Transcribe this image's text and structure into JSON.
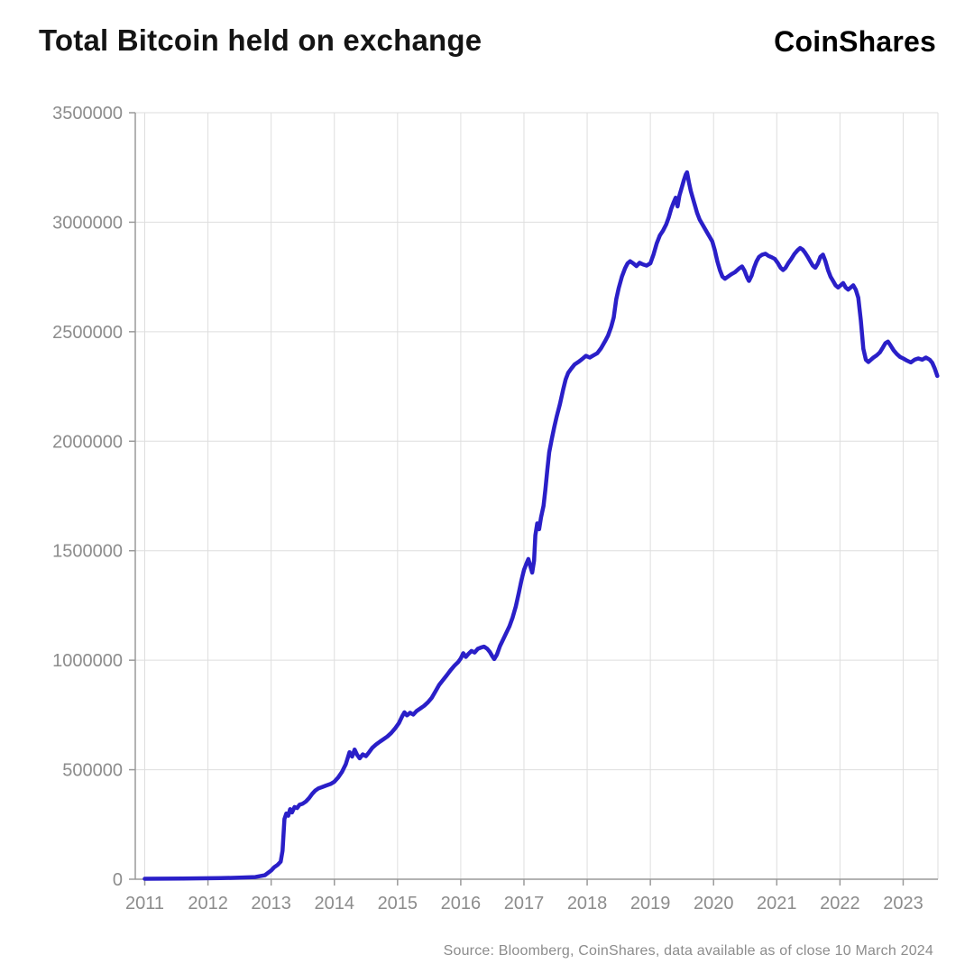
{
  "header": {
    "title": "Total Bitcoin held on exchange",
    "brand": "CoinShares"
  },
  "footer": {
    "source": "Source: Bloomberg, CoinShares, data available as of close 10 March 2024"
  },
  "chart_data": {
    "type": "line",
    "title": "Total Bitcoin held on exchange",
    "xlabel": "",
    "ylabel": "",
    "xlim": [
      2010.85,
      2023.55
    ],
    "ylim": [
      0,
      3500000
    ],
    "x_ticks": [
      2011,
      2012,
      2013,
      2014,
      2015,
      2016,
      2017,
      2018,
      2019,
      2020,
      2021,
      2022,
      2023
    ],
    "y_ticks": [
      0,
      500000,
      1000000,
      1500000,
      2000000,
      2500000,
      3000000,
      3500000
    ],
    "grid": true,
    "legend": "none",
    "colors": {
      "line": "#2a1fc8",
      "grid": "#dedede",
      "axis": "#9a9a9a",
      "tick_label": "#8c8c8c",
      "title": "#141414"
    },
    "series": [
      {
        "name": "Total Bitcoin held on exchange",
        "points": [
          [
            2011.0,
            2000
          ],
          [
            2011.3,
            2500
          ],
          [
            2011.6,
            3000
          ],
          [
            2011.9,
            4000
          ],
          [
            2012.2,
            5000
          ],
          [
            2012.5,
            7000
          ],
          [
            2012.75,
            10000
          ],
          [
            2012.9,
            18000
          ],
          [
            2013.0,
            40000
          ],
          [
            2013.05,
            55000
          ],
          [
            2013.1,
            65000
          ],
          [
            2013.15,
            80000
          ],
          [
            2013.18,
            130000
          ],
          [
            2013.21,
            275000
          ],
          [
            2013.24,
            300000
          ],
          [
            2013.27,
            290000
          ],
          [
            2013.3,
            320000
          ],
          [
            2013.33,
            305000
          ],
          [
            2013.37,
            330000
          ],
          [
            2013.41,
            325000
          ],
          [
            2013.45,
            340000
          ],
          [
            2013.5,
            345000
          ],
          [
            2013.55,
            355000
          ],
          [
            2013.6,
            370000
          ],
          [
            2013.65,
            390000
          ],
          [
            2013.7,
            405000
          ],
          [
            2013.75,
            415000
          ],
          [
            2013.8,
            420000
          ],
          [
            2013.87,
            428000
          ],
          [
            2013.94,
            435000
          ],
          [
            2014.0,
            445000
          ],
          [
            2014.06,
            465000
          ],
          [
            2014.12,
            490000
          ],
          [
            2014.18,
            525000
          ],
          [
            2014.24,
            580000
          ],
          [
            2014.28,
            560000
          ],
          [
            2014.32,
            592000
          ],
          [
            2014.36,
            568000
          ],
          [
            2014.4,
            552000
          ],
          [
            2014.45,
            570000
          ],
          [
            2014.5,
            562000
          ],
          [
            2014.55,
            580000
          ],
          [
            2014.6,
            600000
          ],
          [
            2014.66,
            615000
          ],
          [
            2014.72,
            628000
          ],
          [
            2014.78,
            640000
          ],
          [
            2014.84,
            652000
          ],
          [
            2014.9,
            668000
          ],
          [
            2014.96,
            688000
          ],
          [
            2015.02,
            712000
          ],
          [
            2015.07,
            742000
          ],
          [
            2015.11,
            762000
          ],
          [
            2015.15,
            748000
          ],
          [
            2015.2,
            760000
          ],
          [
            2015.25,
            752000
          ],
          [
            2015.3,
            768000
          ],
          [
            2015.36,
            780000
          ],
          [
            2015.42,
            792000
          ],
          [
            2015.48,
            808000
          ],
          [
            2015.54,
            828000
          ],
          [
            2015.6,
            858000
          ],
          [
            2015.66,
            888000
          ],
          [
            2015.72,
            910000
          ],
          [
            2015.78,
            932000
          ],
          [
            2015.84,
            955000
          ],
          [
            2015.9,
            975000
          ],
          [
            2015.96,
            992000
          ],
          [
            2016.0,
            1008000
          ],
          [
            2016.04,
            1032000
          ],
          [
            2016.08,
            1015000
          ],
          [
            2016.12,
            1028000
          ],
          [
            2016.17,
            1042000
          ],
          [
            2016.22,
            1035000
          ],
          [
            2016.27,
            1052000
          ],
          [
            2016.32,
            1058000
          ],
          [
            2016.37,
            1062000
          ],
          [
            2016.42,
            1052000
          ],
          [
            2016.46,
            1038000
          ],
          [
            2016.5,
            1018000
          ],
          [
            2016.53,
            1005000
          ],
          [
            2016.57,
            1025000
          ],
          [
            2016.62,
            1065000
          ],
          [
            2016.67,
            1095000
          ],
          [
            2016.72,
            1125000
          ],
          [
            2016.77,
            1155000
          ],
          [
            2016.82,
            1195000
          ],
          [
            2016.87,
            1245000
          ],
          [
            2016.92,
            1310000
          ],
          [
            2016.96,
            1365000
          ],
          [
            2017.0,
            1412000
          ],
          [
            2017.04,
            1442000
          ],
          [
            2017.07,
            1462000
          ],
          [
            2017.1,
            1430000
          ],
          [
            2017.13,
            1400000
          ],
          [
            2017.16,
            1455000
          ],
          [
            2017.18,
            1570000
          ],
          [
            2017.21,
            1625000
          ],
          [
            2017.24,
            1598000
          ],
          [
            2017.27,
            1652000
          ],
          [
            2017.31,
            1705000
          ],
          [
            2017.34,
            1782000
          ],
          [
            2017.37,
            1870000
          ],
          [
            2017.4,
            1950000
          ],
          [
            2017.44,
            2010000
          ],
          [
            2017.48,
            2065000
          ],
          [
            2017.52,
            2115000
          ],
          [
            2017.57,
            2170000
          ],
          [
            2017.62,
            2235000
          ],
          [
            2017.66,
            2282000
          ],
          [
            2017.7,
            2312000
          ],
          [
            2017.75,
            2332000
          ],
          [
            2017.8,
            2350000
          ],
          [
            2017.86,
            2362000
          ],
          [
            2017.92,
            2375000
          ],
          [
            2017.98,
            2390000
          ],
          [
            2018.04,
            2382000
          ],
          [
            2018.1,
            2392000
          ],
          [
            2018.16,
            2402000
          ],
          [
            2018.22,
            2425000
          ],
          [
            2018.28,
            2455000
          ],
          [
            2018.33,
            2482000
          ],
          [
            2018.38,
            2522000
          ],
          [
            2018.42,
            2565000
          ],
          [
            2018.46,
            2648000
          ],
          [
            2018.5,
            2700000
          ],
          [
            2018.55,
            2752000
          ],
          [
            2018.6,
            2790000
          ],
          [
            2018.64,
            2812000
          ],
          [
            2018.68,
            2822000
          ],
          [
            2018.73,
            2812000
          ],
          [
            2018.78,
            2800000
          ],
          [
            2018.83,
            2815000
          ],
          [
            2018.88,
            2808000
          ],
          [
            2018.94,
            2802000
          ],
          [
            2019.0,
            2812000
          ],
          [
            2019.05,
            2852000
          ],
          [
            2019.1,
            2902000
          ],
          [
            2019.15,
            2940000
          ],
          [
            2019.2,
            2962000
          ],
          [
            2019.25,
            2990000
          ],
          [
            2019.29,
            3022000
          ],
          [
            2019.33,
            3062000
          ],
          [
            2019.37,
            3092000
          ],
          [
            2019.4,
            3112000
          ],
          [
            2019.43,
            3072000
          ],
          [
            2019.46,
            3122000
          ],
          [
            2019.5,
            3162000
          ],
          [
            2019.53,
            3192000
          ],
          [
            2019.56,
            3218000
          ],
          [
            2019.58,
            3228000
          ],
          [
            2019.61,
            3182000
          ],
          [
            2019.64,
            3142000
          ],
          [
            2019.67,
            3112000
          ],
          [
            2019.7,
            3082000
          ],
          [
            2019.74,
            3042000
          ],
          [
            2019.78,
            3012000
          ],
          [
            2019.82,
            2992000
          ],
          [
            2019.86,
            2972000
          ],
          [
            2019.9,
            2952000
          ],
          [
            2019.94,
            2932000
          ],
          [
            2019.98,
            2912000
          ],
          [
            2020.02,
            2872000
          ],
          [
            2020.06,
            2822000
          ],
          [
            2020.1,
            2782000
          ],
          [
            2020.14,
            2752000
          ],
          [
            2020.18,
            2742000
          ],
          [
            2020.23,
            2752000
          ],
          [
            2020.28,
            2762000
          ],
          [
            2020.34,
            2772000
          ],
          [
            2020.4,
            2788000
          ],
          [
            2020.45,
            2798000
          ],
          [
            2020.49,
            2778000
          ],
          [
            2020.53,
            2748000
          ],
          [
            2020.56,
            2732000
          ],
          [
            2020.6,
            2755000
          ],
          [
            2020.64,
            2792000
          ],
          [
            2020.68,
            2822000
          ],
          [
            2020.72,
            2842000
          ],
          [
            2020.77,
            2852000
          ],
          [
            2020.82,
            2856000
          ],
          [
            2020.87,
            2846000
          ],
          [
            2020.92,
            2840000
          ],
          [
            2020.97,
            2832000
          ],
          [
            2021.02,
            2812000
          ],
          [
            2021.06,
            2792000
          ],
          [
            2021.1,
            2782000
          ],
          [
            2021.14,
            2792000
          ],
          [
            2021.18,
            2812000
          ],
          [
            2021.23,
            2832000
          ],
          [
            2021.28,
            2855000
          ],
          [
            2021.33,
            2872000
          ],
          [
            2021.37,
            2882000
          ],
          [
            2021.41,
            2875000
          ],
          [
            2021.45,
            2860000
          ],
          [
            2021.49,
            2842000
          ],
          [
            2021.53,
            2822000
          ],
          [
            2021.57,
            2802000
          ],
          [
            2021.61,
            2792000
          ],
          [
            2021.65,
            2812000
          ],
          [
            2021.69,
            2842000
          ],
          [
            2021.73,
            2852000
          ],
          [
            2021.77,
            2822000
          ],
          [
            2021.81,
            2782000
          ],
          [
            2021.85,
            2752000
          ],
          [
            2021.89,
            2732000
          ],
          [
            2021.93,
            2712000
          ],
          [
            2021.97,
            2702000
          ],
          [
            2022.01,
            2712000
          ],
          [
            2022.05,
            2722000
          ],
          [
            2022.09,
            2702000
          ],
          [
            2022.13,
            2692000
          ],
          [
            2022.17,
            2702000
          ],
          [
            2022.21,
            2712000
          ],
          [
            2022.25,
            2692000
          ],
          [
            2022.29,
            2655000
          ],
          [
            2022.33,
            2552000
          ],
          [
            2022.37,
            2422000
          ],
          [
            2022.41,
            2372000
          ],
          [
            2022.45,
            2362000
          ],
          [
            2022.49,
            2372000
          ],
          [
            2022.53,
            2382000
          ],
          [
            2022.58,
            2392000
          ],
          [
            2022.63,
            2405000
          ],
          [
            2022.68,
            2428000
          ],
          [
            2022.72,
            2448000
          ],
          [
            2022.76,
            2455000
          ],
          [
            2022.8,
            2438000
          ],
          [
            2022.85,
            2415000
          ],
          [
            2022.9,
            2398000
          ],
          [
            2022.95,
            2385000
          ],
          [
            2023.0,
            2378000
          ],
          [
            2023.06,
            2368000
          ],
          [
            2023.12,
            2360000
          ],
          [
            2023.18,
            2372000
          ],
          [
            2023.24,
            2378000
          ],
          [
            2023.3,
            2372000
          ],
          [
            2023.36,
            2382000
          ],
          [
            2023.42,
            2372000
          ],
          [
            2023.46,
            2358000
          ],
          [
            2023.5,
            2332000
          ],
          [
            2023.54,
            2298000
          ]
        ]
      }
    ]
  }
}
